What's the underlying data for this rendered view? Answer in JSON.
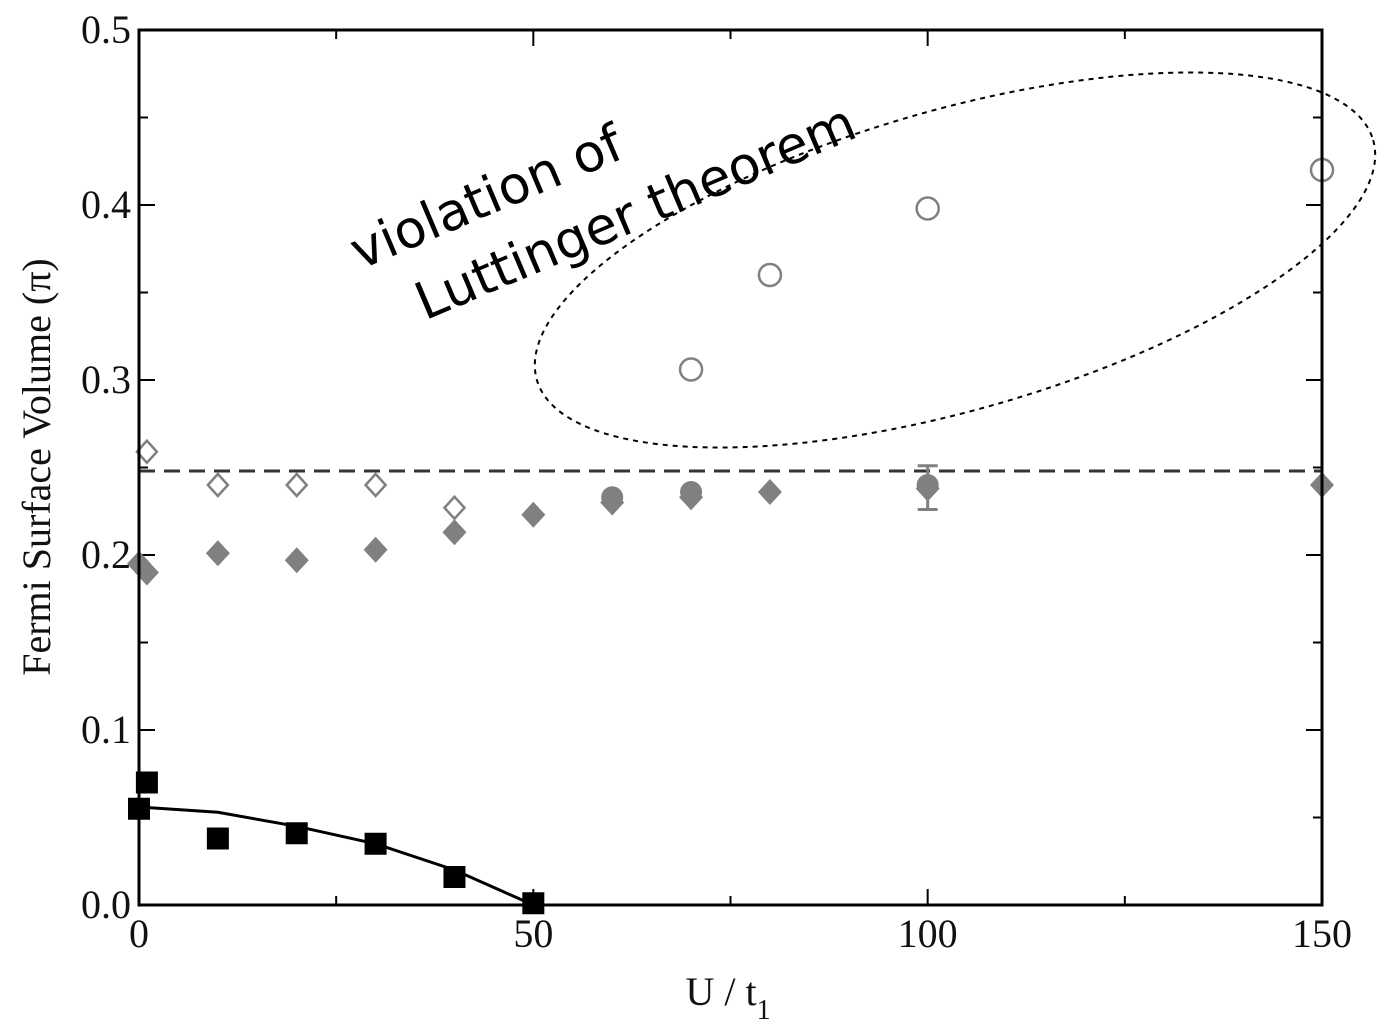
{
  "chart_data": {
    "type": "scatter",
    "title": "",
    "xlabel": "U / t",
    "xlabel_subscript": "1",
    "ylabel": "Fermi Surface Volume (π)",
    "xlim": [
      0,
      150
    ],
    "ylim": [
      0.0,
      0.5
    ],
    "x_ticks": [
      "0",
      "50",
      "100",
      "150"
    ],
    "x_tick_values": [
      0,
      50,
      100,
      150
    ],
    "y_ticks": [
      "0.0",
      "0.1",
      "0.2",
      "0.3",
      "0.4",
      "0.5"
    ],
    "y_tick_values": [
      0.0,
      0.1,
      0.2,
      0.3,
      0.4,
      0.5
    ],
    "grid": false,
    "reference_line": {
      "y": 0.248,
      "style": "dashed",
      "color": "#333333"
    },
    "series": [
      {
        "marker": "square-filled",
        "color": "#000000",
        "points": [
          [
            0,
            0.055
          ],
          [
            1,
            0.07
          ],
          [
            10,
            0.038
          ],
          [
            20,
            0.041
          ],
          [
            30,
            0.035
          ],
          [
            40,
            0.016
          ],
          [
            50,
            0.001
          ]
        ]
      },
      {
        "marker": "line",
        "color": "#000000",
        "points": [
          [
            0,
            0.056
          ],
          [
            10,
            0.053
          ],
          [
            20,
            0.045
          ],
          [
            30,
            0.035
          ],
          [
            40,
            0.02
          ],
          [
            50,
            0.0
          ]
        ]
      },
      {
        "marker": "diamond-open",
        "color": "#808080",
        "points": [
          [
            1,
            0.259
          ],
          [
            10,
            0.24
          ],
          [
            20,
            0.24
          ],
          [
            30,
            0.24
          ],
          [
            40,
            0.227
          ]
        ]
      },
      {
        "marker": "diamond-filled",
        "color": "#808080",
        "points": [
          [
            0,
            0.195
          ],
          [
            1,
            0.19
          ],
          [
            10,
            0.201
          ],
          [
            20,
            0.197
          ],
          [
            30,
            0.203
          ],
          [
            40,
            0.213
          ],
          [
            50,
            0.223
          ],
          [
            60,
            0.23
          ],
          [
            70,
            0.233
          ],
          [
            80,
            0.236
          ],
          [
            100,
            0.238
          ],
          [
            150,
            0.24
          ]
        ]
      },
      {
        "marker": "circle-filled",
        "color": "#808080",
        "points": [
          [
            60,
            0.233
          ],
          [
            70,
            0.236
          ],
          [
            100,
            0.24
          ]
        ]
      },
      {
        "marker": "circle-open",
        "color": "#808080",
        "points": [
          [
            70,
            0.306
          ],
          [
            80,
            0.36
          ],
          [
            100,
            0.398
          ],
          [
            150,
            0.42
          ]
        ]
      }
    ],
    "error_bars": [
      {
        "x": 100,
        "y": 0.24,
        "low": 0.226,
        "high": 0.251,
        "color": "#808080"
      }
    ],
    "annotation": {
      "lines": [
        "violation of",
        "Luttinger theorem"
      ],
      "enclosure": "dashed-ellipse around open circles"
    }
  }
}
